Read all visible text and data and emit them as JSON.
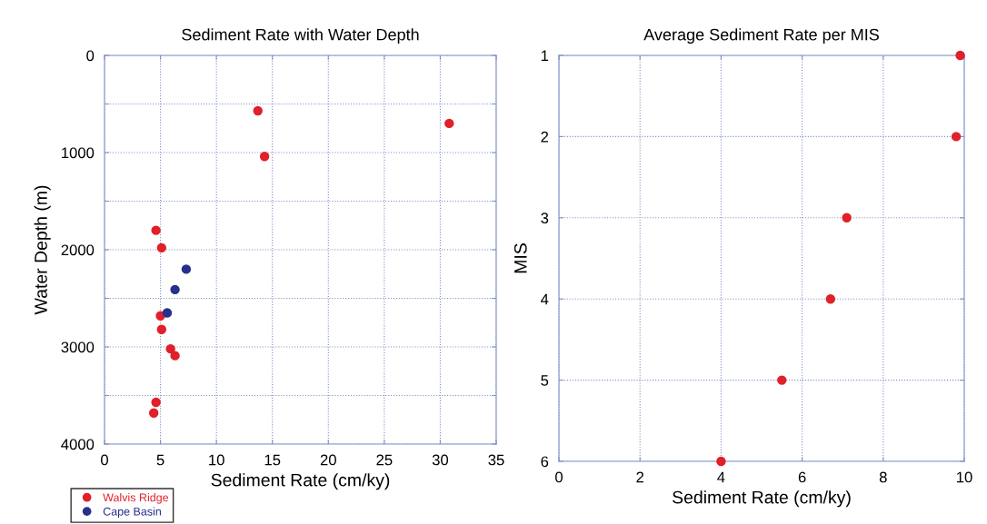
{
  "chart_data": [
    {
      "type": "scatter",
      "title": "Sediment Rate with Water Depth",
      "xlabel": "Sediment Rate (cm/ky)",
      "ylabel": "Water Depth (m)",
      "xlim": [
        0,
        35
      ],
      "xticks": [
        0,
        5,
        10,
        15,
        20,
        25,
        30,
        35
      ],
      "ylim": [
        4000,
        0
      ],
      "yticks": [
        0,
        {
          "value": 500,
          "label": null
        },
        1000,
        {
          "value": 1500,
          "label": null
        },
        2000,
        {
          "value": 2500,
          "label": null
        },
        3000,
        {
          "value": 3500,
          "label": null
        },
        4000
      ],
      "grid": true,
      "legend": "bottom left",
      "marker": "circle",
      "series": [
        {
          "name": "Walvis Ridge",
          "color": "#e0202a",
          "x": [
            13.7,
            30.8,
            14.3,
            4.6,
            5.1,
            5.0,
            5.1,
            5.9,
            6.3,
            4.6,
            4.4
          ],
          "values": [
            570,
            700,
            1040,
            1800,
            1980,
            2680,
            2820,
            3020,
            3090,
            3570,
            3680
          ]
        },
        {
          "name": "Cape Basin",
          "color": "#28308c",
          "x": [
            7.3,
            6.3,
            5.6
          ],
          "values": [
            2200,
            2410,
            2650
          ]
        }
      ]
    },
    {
      "type": "scatter",
      "title": "Average Sediment Rate per MIS",
      "xlabel": "Sediment Rate (cm/ky)",
      "ylabel": "MIS",
      "xlim": [
        0,
        10
      ],
      "xticks": [
        0,
        2,
        4,
        6,
        8,
        10
      ],
      "ylim": [
        6,
        1
      ],
      "yticks": [
        1,
        2,
        3,
        4,
        5,
        6
      ],
      "grid": true,
      "marker": "circle",
      "series": [
        {
          "color": "#e0202a",
          "x": [
            9.9,
            9.8,
            7.1,
            6.7,
            5.5,
            4.0
          ],
          "values": [
            1,
            2,
            3,
            4,
            5,
            6
          ]
        }
      ]
    }
  ]
}
